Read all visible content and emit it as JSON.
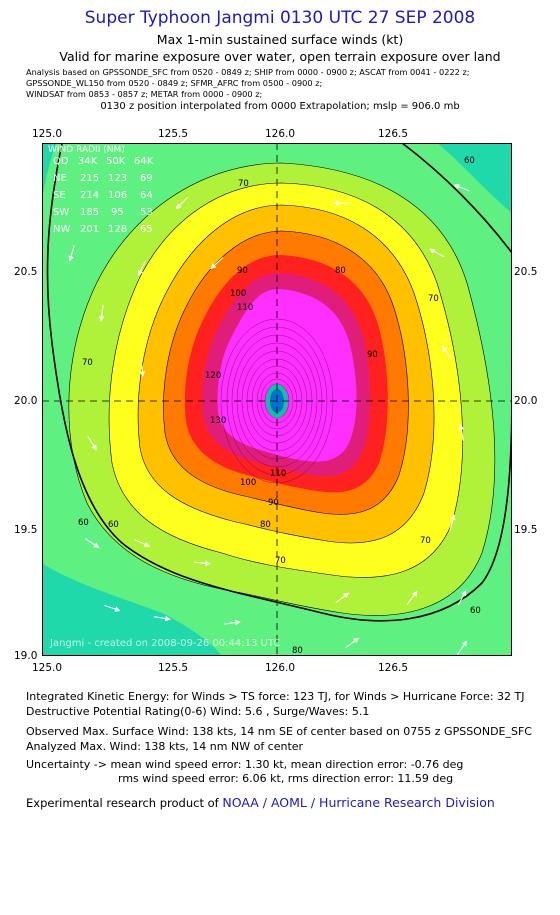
{
  "header": {
    "title": "Super Typhoon Jangmi 0130 UTC 27 SEP 2008",
    "subtitle1": "Max 1-min sustained surface winds (kt)",
    "subtitle2": "Valid for marine exposure over water, open terrain exposure over land",
    "analysis_line1": "Analysis based on  GPSSONDE_SFC from 0520 - 0849 z;  SHIP from 0000 - 0900 z;  ASCAT from 0041 - 0222 z;",
    "analysis_line2": "GPSSONDE_WL150 from 0520 - 0849 z;  SFMR_AFRC from 0500 - 0900 z;",
    "analysis_line3": "WINDSAT from 0853 - 0857 z;  METAR from 0000 - 0900 z;",
    "position_note": "0130 z position interpolated from 0000 Extrapolation; mslp = 906.0 mb"
  },
  "axes": {
    "x_ticks": [
      "125.0",
      "125.5",
      "126.0",
      "126.5"
    ],
    "y_ticks": [
      "20.5",
      "20.0",
      "19.5",
      "19.0"
    ]
  },
  "wind_radii": {
    "title": "WIND RADII (NM)",
    "header": [
      "QD",
      "34K",
      "50K",
      "64K"
    ],
    "rows": [
      [
        "NE",
        "215",
        "123",
        "69"
      ],
      [
        "SE",
        "214",
        "106",
        "64"
      ],
      [
        "SW",
        "185",
        "95",
        "53"
      ],
      [
        "NW",
        "201",
        "128",
        "65"
      ]
    ]
  },
  "contour_labels": [
    "60",
    "60",
    "60",
    "60",
    "70",
    "70",
    "70",
    "70",
    "70",
    "80",
    "80",
    "80",
    "90",
    "90",
    "90",
    "100",
    "100",
    "110",
    "110",
    "120",
    "130"
  ],
  "credit": "Jangmi - created on 2008-09-26 00:44:13 UTC",
  "colors": {
    "band_lt60": "#1fd9aa",
    "band_60": "#5ef080",
    "band_70": "#b0f23a",
    "band_80": "#ffff1e",
    "band_90": "#ffc000",
    "band_100": "#ff7a00",
    "band_110": "#ff2020",
    "band_120": "#e01e7a",
    "band_130": "#ff30ff",
    "eye": "#0070d0",
    "title": "#1a1acc"
  },
  "footer": {
    "ike": "Integrated Kinetic Energy:  for Winds > TS force: 123 TJ,  for Winds > Hurricane Force: 32 TJ",
    "dpr": "Destructive Potential Rating(0-6)   Wind: 5.6 , Surge/Waves: 5.1",
    "obs_max": "Observed Max. Surface Wind: 138 kts, 14 nm SE of center based on 0755 z GPSSONDE_SFC",
    "analyzed_max": "Analyzed Max. Wind: 138 kts, 14 nm NW of center",
    "uncert1": "Uncertainty -> mean wind speed error: 1.30 kt,   mean direction error:  -0.76 deg",
    "uncert2": "rms wind speed error: 6.06 kt,   rms direction error: 11.59 deg",
    "product_prefix": "Experimental research product of ",
    "product_org": "NOAA / AOML / Hurricane Research Division"
  }
}
